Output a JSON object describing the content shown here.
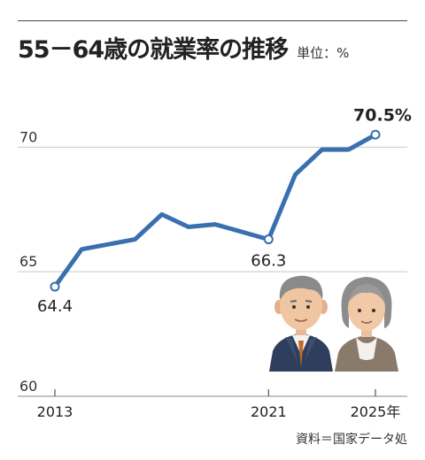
{
  "title": "55－64歳の就業率の推移",
  "unit_label": "単位：%",
  "source": "資料＝国家データ処",
  "colors": {
    "line": "#3a6fb0",
    "grid": "#c8c8c8",
    "axis": "#888888"
  },
  "illustration": "elderly-couple",
  "chart_data": {
    "type": "line",
    "title": "55－64歳の就業率の推移",
    "ylabel": "",
    "xlabel": "",
    "ylim": [
      60,
      72
    ],
    "yticks": [
      60,
      65,
      70
    ],
    "xlim": [
      2013,
      2025
    ],
    "xticks": [
      {
        "x": 2013,
        "label": "2013"
      },
      {
        "x": 2021,
        "label": "2021"
      },
      {
        "x": 2025,
        "label": "2025年"
      }
    ],
    "grid": "horizontal",
    "series": [
      {
        "x": [
          2013,
          2014,
          2015,
          2016,
          2017,
          2018,
          2019,
          2020,
          2021,
          2022,
          2023,
          2024,
          2025
        ],
        "values": [
          64.4,
          65.9,
          66.1,
          66.3,
          67.3,
          66.8,
          66.9,
          66.6,
          66.3,
          68.9,
          69.9,
          69.9,
          70.5
        ]
      }
    ],
    "data_labels": [
      {
        "x": 2013,
        "text": "64.4"
      },
      {
        "x": 2021,
        "text": "66.3"
      },
      {
        "x": 2025,
        "text": "70.5%"
      }
    ]
  }
}
